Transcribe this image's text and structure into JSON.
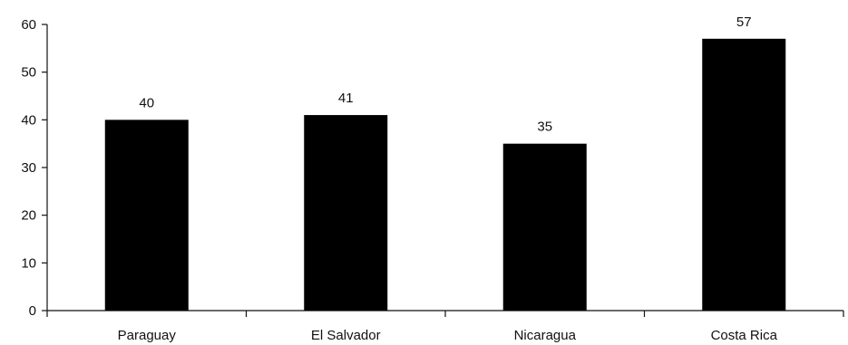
{
  "chart_data": {
    "type": "bar",
    "categories": [
      "Paraguay",
      "El Salvador",
      "Nicaragua",
      "Costa Rica"
    ],
    "values": [
      40,
      41,
      35,
      57
    ],
    "data_labels": [
      "40",
      "41",
      "35",
      "57"
    ],
    "y_ticks": [
      "0",
      "10",
      "20",
      "30",
      "40",
      "50",
      "60"
    ],
    "ylim": [
      0,
      60
    ],
    "grid": false,
    "legend": "none",
    "bar_color": "#000000",
    "axis_color": "#111111"
  }
}
